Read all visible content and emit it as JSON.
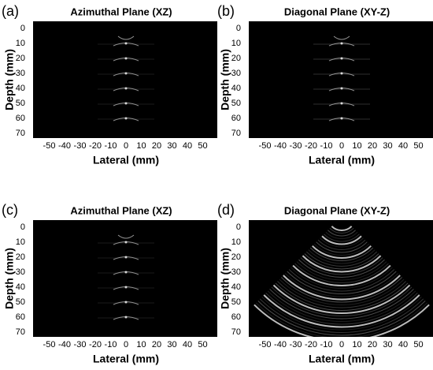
{
  "panels": [
    {
      "label": "(a)",
      "title": "Azimuthal Plane (XZ)",
      "xlabel": "Lateral (mm)",
      "ylabel": "Depth (mm)",
      "xticks": [
        -50,
        -40,
        -30,
        -20,
        -10,
        0,
        10,
        20,
        30,
        40,
        50
      ],
      "yticks": [
        0,
        10,
        20,
        30,
        40,
        50,
        60,
        70
      ]
    },
    {
      "label": "(b)",
      "title": "Diagonal Plane (XY-Z)",
      "xlabel": "Lateral (mm)",
      "ylabel": "Depth (mm)",
      "xticks": [
        -50,
        -40,
        -30,
        -20,
        -10,
        0,
        10,
        20,
        30,
        40,
        50
      ],
      "yticks": [
        0,
        10,
        20,
        30,
        40,
        50,
        60,
        70
      ]
    },
    {
      "label": "(c)",
      "title": "Azimuthal Plane (XZ)",
      "xlabel": "Lateral (mm)",
      "ylabel": "Depth (mm)",
      "xticks": [
        -50,
        -40,
        -30,
        -20,
        -10,
        0,
        10,
        20,
        30,
        40,
        50
      ],
      "yticks": [
        0,
        10,
        20,
        30,
        40,
        50,
        60,
        70
      ]
    },
    {
      "label": "(d)",
      "title": "Diagonal Plane (XY-Z)",
      "xlabel": "Lateral (mm)",
      "ylabel": "Depth (mm)",
      "xticks": [
        -50,
        -40,
        -30,
        -20,
        -10,
        0,
        10,
        20,
        30,
        40,
        50
      ],
      "yticks": [
        0,
        10,
        20,
        30,
        40,
        50,
        60,
        70
      ]
    }
  ]
}
